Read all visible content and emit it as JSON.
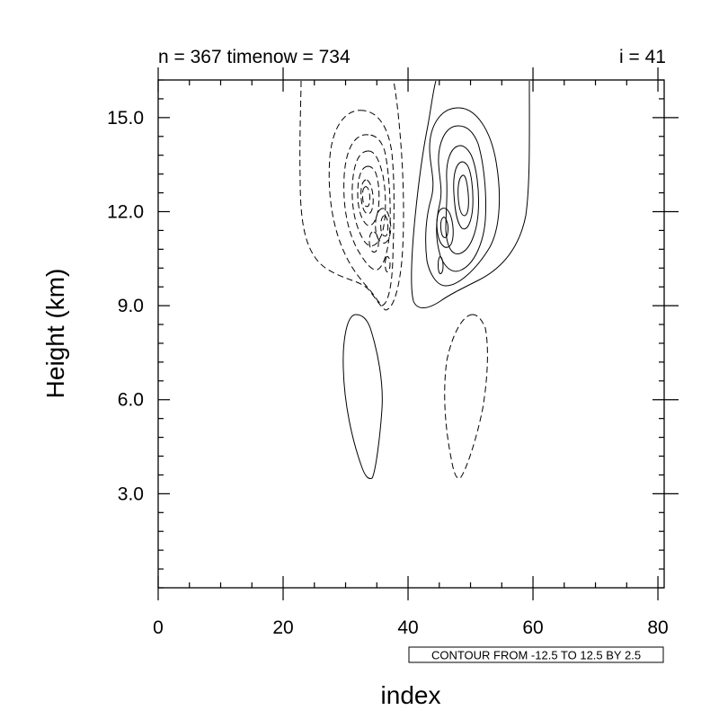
{
  "chart_data": {
    "type": "contour",
    "title_left": "n = 367 timenow = 734",
    "title_right": "i = 41",
    "xlabel": "index",
    "ylabel": "Height (km)",
    "xlim": [
      0,
      81
    ],
    "ylim": [
      0,
      16.2
    ],
    "x_ticks": [
      0,
      20,
      40,
      60,
      80
    ],
    "x_tick_labels": [
      "0",
      "20",
      "40",
      "60",
      "80"
    ],
    "x_minor_step": 5,
    "y_ticks": [
      3.0,
      6.0,
      9.0,
      12.0,
      15.0
    ],
    "y_tick_labels": [
      "3.0",
      "6.0",
      "9.0",
      "12.0",
      "15.0"
    ],
    "y_minor_step": 0.6,
    "contour_info": "CONTOUR FROM -12.5 TO 12.5 BY 2.5",
    "contour_levels": {
      "min": -12.5,
      "max": 12.5,
      "step": 2.5
    },
    "negative_line_style": "dashed",
    "positive_line_style": "solid",
    "features": [
      {
        "name": "upper negative cell",
        "sign": "negative",
        "center_x": 33,
        "center_y": 12.6,
        "x_range": [
          23,
          41
        ],
        "y_range": [
          9.0,
          16.2
        ]
      },
      {
        "name": "upper positive cell",
        "sign": "positive",
        "center_x": 49,
        "center_y": 12.6,
        "x_range": [
          43,
          60
        ],
        "y_range": [
          9.0,
          16.2
        ]
      },
      {
        "name": "lower positive lobe",
        "sign": "positive",
        "center_x": 33.5,
        "center_y": 6.5,
        "x_range": [
          30,
          36
        ],
        "y_range": [
          3.6,
          8.8
        ]
      },
      {
        "name": "lower negative lobe",
        "sign": "negative",
        "center_x": 50,
        "center_y": 6.5,
        "x_range": [
          46,
          53
        ],
        "y_range": [
          3.6,
          8.8
        ]
      }
    ]
  }
}
